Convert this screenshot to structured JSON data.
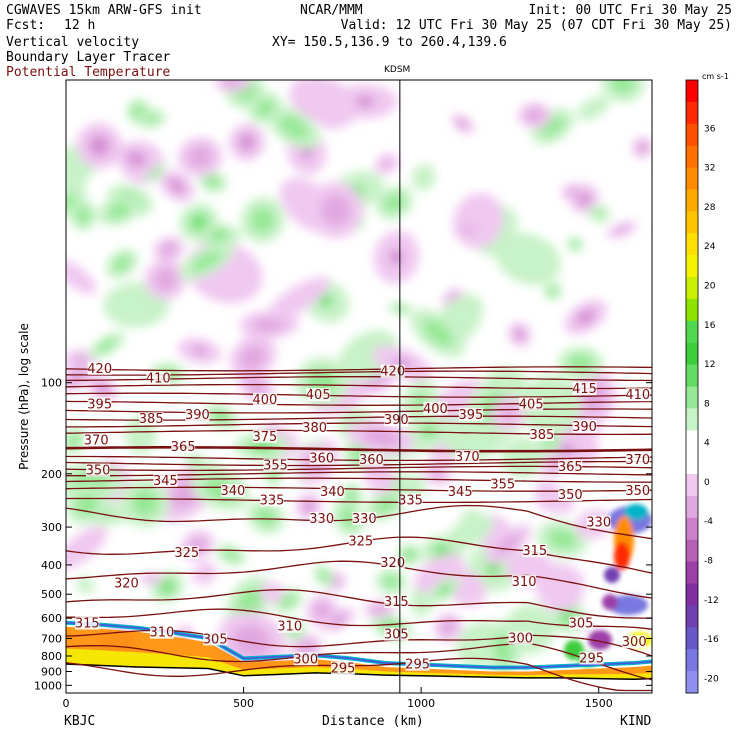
{
  "header": {
    "model": "CGWAVES 15km ARW-GFS init",
    "fcst_label": "Fcst:",
    "fcst_value": "12 h",
    "org": "NCAR/MMM",
    "init": "Init: 00 UTC Fri 30 May 25",
    "valid": "Valid: 12 UTC Fri 30 May 25 (07 CDT Fri 30 May 25)",
    "xy": "XY= 150.5,136.9 to 260.4,139.6",
    "field1": "Vertical velocity",
    "field2": "Boundary Layer Tracer",
    "field3": "Potential Temperature",
    "station_marker": "KDSM"
  },
  "chart_data": {
    "type": "cross-section",
    "ylabel": "Pressure (hPa), log scale",
    "xlabel": "Distance (km)",
    "xlim": [
      0,
      1650
    ],
    "ylim": [
      1060,
      10
    ],
    "y_scale": "log",
    "x_ticks": [
      0,
      500,
      1000,
      1500
    ],
    "y_ticks": [
      100,
      200,
      300,
      400,
      500,
      600,
      700,
      800,
      900,
      1000
    ],
    "endpoints": {
      "left": "KBJC",
      "right": "KIND"
    },
    "marker_line_x": 940,
    "colorbar": {
      "unit": "cm s-1",
      "labels": [
        36,
        32,
        28,
        24,
        20,
        16,
        12,
        8,
        4,
        0,
        -4,
        -8,
        -12,
        -16,
        -20
      ],
      "colors": [
        "#ff0000",
        "#ff2a00",
        "#ff5000",
        "#ff7000",
        "#ff8c00",
        "#ffaa00",
        "#ffc400",
        "#ffe000",
        "#f4f400",
        "#c8f000",
        "#8ce400",
        "#50d850",
        "#3ccc3c",
        "#64dc64",
        "#96e896",
        "#c8f2c8",
        "#ffffff",
        "#ffffff",
        "#f0c8f0",
        "#e0a8e0",
        "#cc80cc",
        "#b460b4",
        "#9c40a8",
        "#8030a0",
        "#7040b0",
        "#6858c8",
        "#7878e0",
        "#9090f0"
      ]
    },
    "theta_contours": [
      {
        "label": "420",
        "p": 90
      },
      {
        "label": "415",
        "p": 93
      },
      {
        "label": "410",
        "p": 97
      },
      {
        "label": "405",
        "p": 103
      },
      {
        "label": "400",
        "p": 110
      },
      {
        "label": "395",
        "p": 117
      },
      {
        "label": "390",
        "p": 124
      },
      {
        "label": "385",
        "p": 131
      },
      {
        "label": "380",
        "p": 138
      },
      {
        "label": "375",
        "p": 146
      },
      {
        "label": "370",
        "p": 166
      },
      {
        "label": "365",
        "p": 178
      },
      {
        "label": "360",
        "p": 185
      },
      {
        "label": "355",
        "p": 192
      },
      {
        "label": "350",
        "p": 200
      },
      {
        "label": "345",
        "p": 210
      },
      {
        "label": "340",
        "p": 225
      },
      {
        "label": "335",
        "p": 245
      },
      {
        "label": "330",
        "p": 275
      },
      {
        "label": "325",
        "p": 350
      },
      {
        "label": "320",
        "p": 420
      },
      {
        "label": "315",
        "p": 520
      },
      {
        "label": "310",
        "p": 600
      },
      {
        "label": "305",
        "p": 700
      },
      {
        "label": "300",
        "p": 780
      },
      {
        "label": "295",
        "p": 870
      }
    ],
    "contour_labels": [
      {
        "t": "420",
        "x": 95,
        "p": 90
      },
      {
        "t": "410",
        "x": 260,
        "p": 97
      },
      {
        "t": "420",
        "x": 920,
        "p": 92
      },
      {
        "t": "415",
        "x": 1460,
        "p": 105
      },
      {
        "t": "410",
        "x": 1610,
        "p": 110
      },
      {
        "t": "395",
        "x": 95,
        "p": 118
      },
      {
        "t": "400",
        "x": 560,
        "p": 114
      },
      {
        "t": "405",
        "x": 710,
        "p": 110
      },
      {
        "t": "400",
        "x": 1040,
        "p": 122
      },
      {
        "t": "395",
        "x": 1140,
        "p": 128
      },
      {
        "t": "405",
        "x": 1310,
        "p": 118
      },
      {
        "t": "385",
        "x": 240,
        "p": 132
      },
      {
        "t": "390",
        "x": 370,
        "p": 128
      },
      {
        "t": "380",
        "x": 700,
        "p": 141
      },
      {
        "t": "390",
        "x": 930,
        "p": 133
      },
      {
        "t": "385",
        "x": 1340,
        "p": 149
      },
      {
        "t": "390",
        "x": 1460,
        "p": 140
      },
      {
        "t": "370",
        "x": 85,
        "p": 155
      },
      {
        "t": "375",
        "x": 560,
        "p": 151
      },
      {
        "t": "365",
        "x": 330,
        "p": 163
      },
      {
        "t": "350",
        "x": 90,
        "p": 195
      },
      {
        "t": "345",
        "x": 280,
        "p": 211
      },
      {
        "t": "340",
        "x": 470,
        "p": 228
      },
      {
        "t": "355",
        "x": 590,
        "p": 188
      },
      {
        "t": "360",
        "x": 720,
        "p": 178
      },
      {
        "t": "360",
        "x": 860,
        "p": 180
      },
      {
        "t": "370",
        "x": 1130,
        "p": 176
      },
      {
        "t": "365",
        "x": 1420,
        "p": 190
      },
      {
        "t": "370",
        "x": 1610,
        "p": 180
      },
      {
        "t": "335",
        "x": 580,
        "p": 245
      },
      {
        "t": "340",
        "x": 750,
        "p": 230
      },
      {
        "t": "335",
        "x": 970,
        "p": 245
      },
      {
        "t": "345",
        "x": 1110,
        "p": 230
      },
      {
        "t": "355",
        "x": 1230,
        "p": 217
      },
      {
        "t": "350",
        "x": 1420,
        "p": 235
      },
      {
        "t": "350",
        "x": 1610,
        "p": 228
      },
      {
        "t": "330",
        "x": 720,
        "p": 282
      },
      {
        "t": "330",
        "x": 840,
        "p": 282
      },
      {
        "t": "330",
        "x": 1500,
        "p": 290
      },
      {
        "t": "325",
        "x": 340,
        "p": 365
      },
      {
        "t": "325",
        "x": 830,
        "p": 335
      },
      {
        "t": "320",
        "x": 170,
        "p": 460
      },
      {
        "t": "320",
        "x": 920,
        "p": 395
      },
      {
        "t": "315",
        "x": 1320,
        "p": 360
      },
      {
        "t": "310",
        "x": 1290,
        "p": 455
      },
      {
        "t": "315",
        "x": 60,
        "p": 625
      },
      {
        "t": "315",
        "x": 930,
        "p": 530
      },
      {
        "t": "310",
        "x": 270,
        "p": 670
      },
      {
        "t": "310",
        "x": 630,
        "p": 640
      },
      {
        "t": "305",
        "x": 420,
        "p": 705
      },
      {
        "t": "305",
        "x": 930,
        "p": 680
      },
      {
        "t": "300",
        "x": 1280,
        "p": 700
      },
      {
        "t": "305",
        "x": 1450,
        "p": 625
      },
      {
        "t": "300",
        "x": 1600,
        "p": 720
      },
      {
        "t": "300",
        "x": 675,
        "p": 820
      },
      {
        "t": "295",
        "x": 780,
        "p": 880
      },
      {
        "t": "295",
        "x": 990,
        "p": 855
      },
      {
        "t": "295",
        "x": 1480,
        "p": 815
      }
    ]
  }
}
